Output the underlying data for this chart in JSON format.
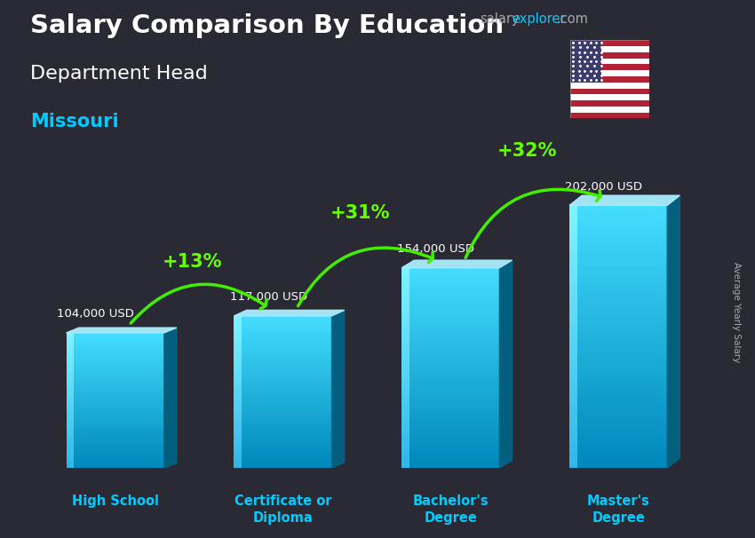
{
  "title_main": "Salary Comparison By Education",
  "subtitle": "Department Head",
  "location": "Missouri",
  "ylabel": "Average Yearly Salary",
  "categories": [
    "High School",
    "Certificate or\nDiploma",
    "Bachelor's\nDegree",
    "Master's\nDegree"
  ],
  "values": [
    104000,
    117000,
    154000,
    202000
  ],
  "labels": [
    "104,000 USD",
    "117,000 USD",
    "154,000 USD",
    "202,000 USD"
  ],
  "pct_labels": [
    "+13%",
    "+31%",
    "+32%"
  ],
  "bar_color_main": "#00ccee",
  "bar_color_light": "#44ddff",
  "bar_color_side": "#007799",
  "bar_color_top": "#88eeff",
  "background_color": "#2a2a35",
  "title_color": "#ffffff",
  "subtitle_color": "#ffffff",
  "location_color": "#00ccff",
  "label_color": "#ffffff",
  "pct_color": "#66ff00",
  "arrow_color": "#44ee00",
  "salary_text_color": "#aaaaaa",
  "explorer_text_color": "#00ccff",
  "xtick_color": "#00ccff"
}
